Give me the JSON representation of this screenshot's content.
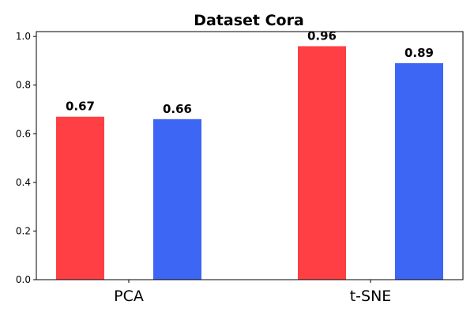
{
  "chart_data": {
    "type": "bar",
    "title": "Dataset Cora",
    "xlabel": "",
    "ylabel": "",
    "categories": [
      "PCA",
      "t-SNE"
    ],
    "series": [
      {
        "values": [
          0.67,
          0.96
        ],
        "labels": [
          "0.67",
          "0.96"
        ],
        "color": "#ff3f44"
      },
      {
        "values": [
          0.66,
          0.89
        ],
        "labels": [
          "0.66",
          "0.89"
        ],
        "color": "#3d66f5"
      }
    ],
    "ylim": [
      0,
      1.02
    ],
    "yticks": [
      0.0,
      0.2,
      0.4,
      0.6,
      0.8,
      1.0
    ],
    "ytick_labels": [
      "0.0",
      "0.2",
      "0.4",
      "0.6",
      "0.8",
      "1.0"
    ],
    "grid": false,
    "legend": "none"
  }
}
